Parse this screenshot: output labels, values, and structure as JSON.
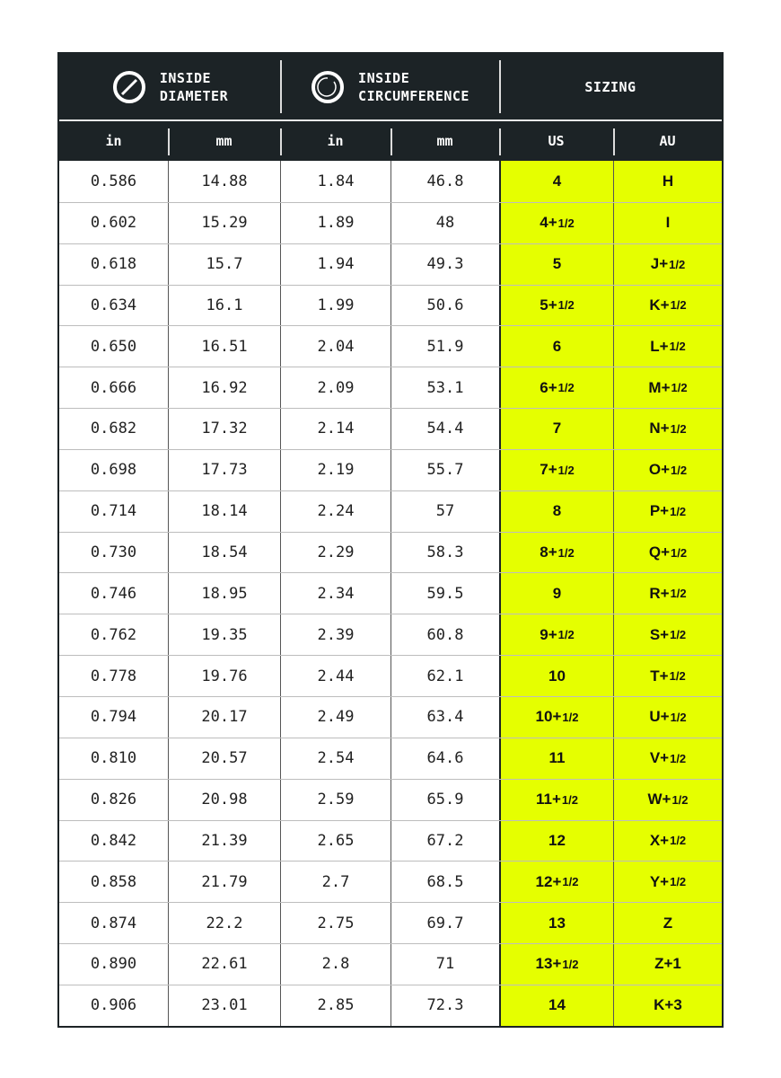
{
  "header": {
    "groups": [
      {
        "icon": "diameter-icon",
        "line1": "INSIDE",
        "line2": "DIAMETER"
      },
      {
        "icon": "circumference-icon",
        "line1": "INSIDE",
        "line2": "CIRCUMFERENCE"
      },
      {
        "label": "SIZING"
      }
    ],
    "units": [
      "in",
      "mm",
      "in",
      "mm",
      "US",
      "AU"
    ]
  },
  "colors": {
    "header_bg": "#1c2326",
    "highlight": "#e5ff00"
  },
  "rows": [
    {
      "d_in": "0.586",
      "d_mm": "14.88",
      "c_in": "1.84",
      "c_mm": "46.8",
      "us": "4",
      "us_frac": "",
      "au": "H",
      "au_frac": ""
    },
    {
      "d_in": "0.602",
      "d_mm": "15.29",
      "c_in": "1.89",
      "c_mm": "48",
      "us": "4+",
      "us_frac": "1/2",
      "au": "I",
      "au_frac": ""
    },
    {
      "d_in": "0.618",
      "d_mm": "15.7",
      "c_in": "1.94",
      "c_mm": "49.3",
      "us": "5",
      "us_frac": "",
      "au": "J+",
      "au_frac": "1/2"
    },
    {
      "d_in": "0.634",
      "d_mm": "16.1",
      "c_in": "1.99",
      "c_mm": "50.6",
      "us": "5+",
      "us_frac": "1/2",
      "au": "K+",
      "au_frac": "1/2"
    },
    {
      "d_in": "0.650",
      "d_mm": "16.51",
      "c_in": "2.04",
      "c_mm": "51.9",
      "us": "6",
      "us_frac": "",
      "au": "L+",
      "au_frac": "1/2"
    },
    {
      "d_in": "0.666",
      "d_mm": "16.92",
      "c_in": "2.09",
      "c_mm": "53.1",
      "us": "6+",
      "us_frac": "1/2",
      "au": "M+",
      "au_frac": "1/2"
    },
    {
      "d_in": "0.682",
      "d_mm": "17.32",
      "c_in": "2.14",
      "c_mm": "54.4",
      "us": "7",
      "us_frac": "",
      "au": "N+",
      "au_frac": "1/2"
    },
    {
      "d_in": "0.698",
      "d_mm": "17.73",
      "c_in": "2.19",
      "c_mm": "55.7",
      "us": "7+",
      "us_frac": "1/2",
      "au": "O+",
      "au_frac": "1/2"
    },
    {
      "d_in": "0.714",
      "d_mm": "18.14",
      "c_in": "2.24",
      "c_mm": "57",
      "us": "8",
      "us_frac": "",
      "au": "P+",
      "au_frac": "1/2"
    },
    {
      "d_in": "0.730",
      "d_mm": "18.54",
      "c_in": "2.29",
      "c_mm": "58.3",
      "us": "8+",
      "us_frac": "1/2",
      "au": "Q+",
      "au_frac": "1/2"
    },
    {
      "d_in": "0.746",
      "d_mm": "18.95",
      "c_in": "2.34",
      "c_mm": "59.5",
      "us": "9",
      "us_frac": "",
      "au": "R+",
      "au_frac": "1/2"
    },
    {
      "d_in": "0.762",
      "d_mm": "19.35",
      "c_in": "2.39",
      "c_mm": "60.8",
      "us": "9+",
      "us_frac": "1/2",
      "au": "S+",
      "au_frac": "1/2"
    },
    {
      "d_in": "0.778",
      "d_mm": "19.76",
      "c_in": "2.44",
      "c_mm": "62.1",
      "us": "10",
      "us_frac": "",
      "au": "T+",
      "au_frac": "1/2"
    },
    {
      "d_in": "0.794",
      "d_mm": "20.17",
      "c_in": "2.49",
      "c_mm": "63.4",
      "us": "10+",
      "us_frac": "1/2",
      "au": "U+",
      "au_frac": "1/2"
    },
    {
      "d_in": "0.810",
      "d_mm": "20.57",
      "c_in": "2.54",
      "c_mm": "64.6",
      "us": "11",
      "us_frac": "",
      "au": "V+",
      "au_frac": "1/2"
    },
    {
      "d_in": "0.826",
      "d_mm": "20.98",
      "c_in": "2.59",
      "c_mm": "65.9",
      "us": "11+",
      "us_frac": "1/2",
      "au": "W+",
      "au_frac": "1/2"
    },
    {
      "d_in": "0.842",
      "d_mm": "21.39",
      "c_in": "2.65",
      "c_mm": "67.2",
      "us": "12",
      "us_frac": "",
      "au": "X+",
      "au_frac": "1/2"
    },
    {
      "d_in": "0.858",
      "d_mm": "21.79",
      "c_in": "2.7",
      "c_mm": "68.5",
      "us": "12+",
      "us_frac": "1/2",
      "au": "Y+",
      "au_frac": "1/2"
    },
    {
      "d_in": "0.874",
      "d_mm": "22.2",
      "c_in": "2.75",
      "c_mm": "69.7",
      "us": "13",
      "us_frac": "",
      "au": "Z",
      "au_frac": ""
    },
    {
      "d_in": "0.890",
      "d_mm": "22.61",
      "c_in": "2.8",
      "c_mm": "71",
      "us": "13+",
      "us_frac": "1/2",
      "au": "Z+1",
      "au_frac": ""
    },
    {
      "d_in": "0.906",
      "d_mm": "23.01",
      "c_in": "2.85",
      "c_mm": "72.3",
      "us": "14",
      "us_frac": "",
      "au": "K+3",
      "au_frac": ""
    }
  ]
}
